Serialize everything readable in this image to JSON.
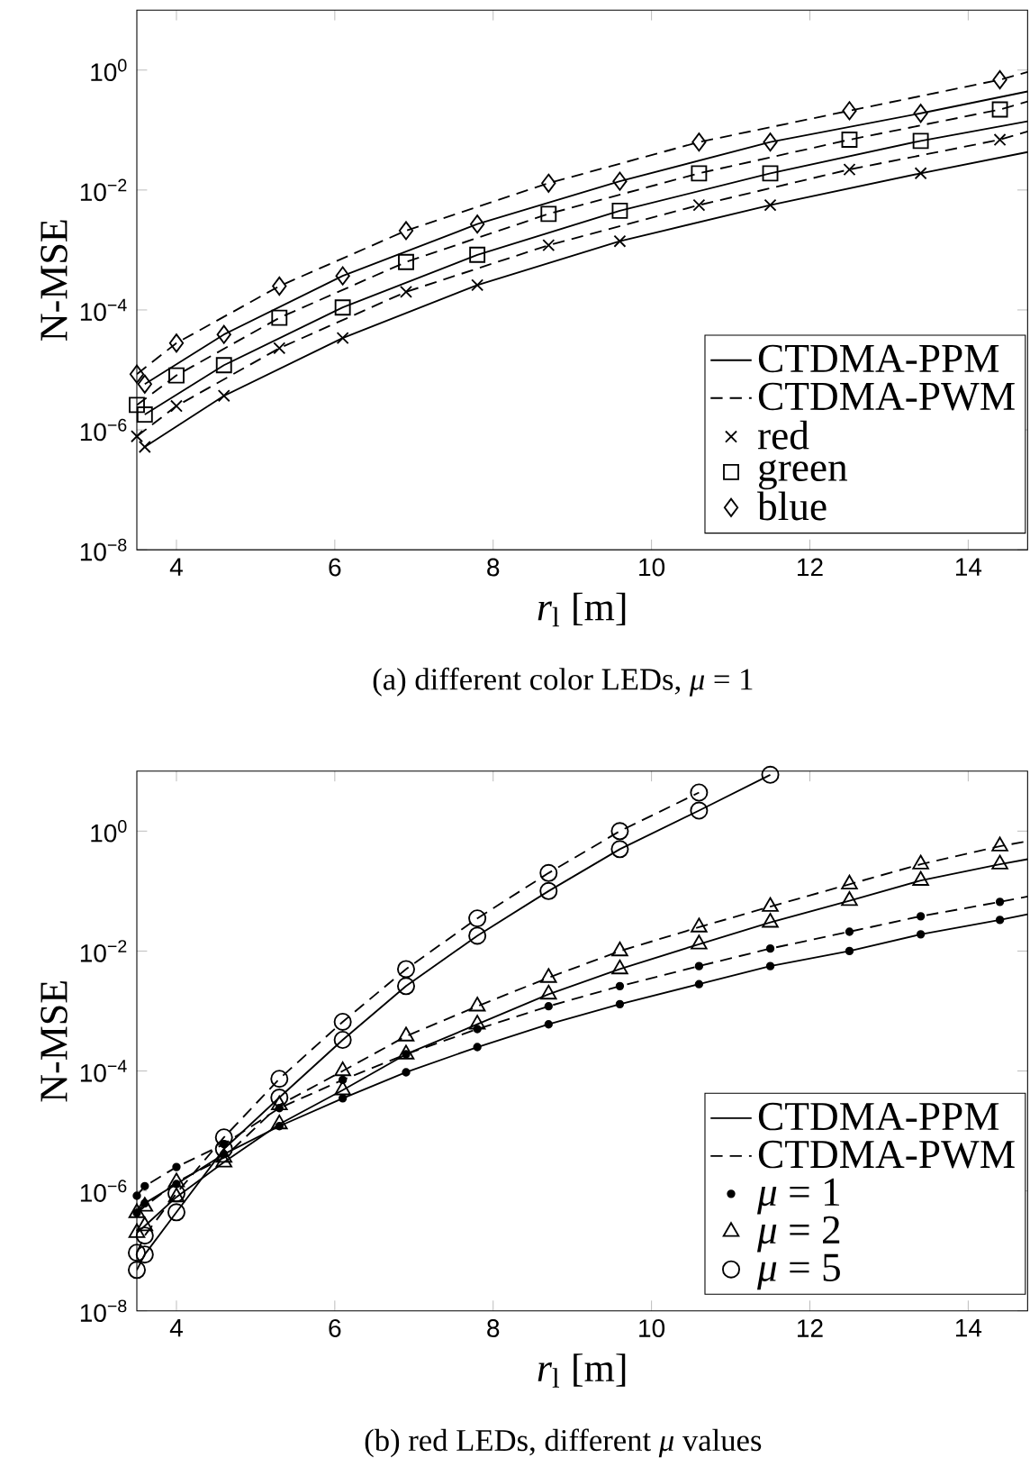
{
  "chart_data": [
    {
      "type": "line",
      "xlabel": "*r*$_{l}$ [m]",
      "ylabel": "N-MSE",
      "log": "y",
      "legend": "bottom right",
      "xlim": [
        3.5,
        14.75
      ],
      "ylim": [
        1e-08,
        10
      ],
      "xticks": [
        4,
        6,
        8,
        10,
        12,
        14
      ],
      "yticks": [
        {
          "value": 1e-08,
          "label": "10$^{−8}$"
        },
        {
          "value": 1e-06,
          "label": "10$^{−6}$"
        },
        {
          "value": 0.0001,
          "label": "10$^{−4}$"
        },
        {
          "value": 0.01,
          "label": "10$^{−2}$"
        },
        {
          "value": 1,
          "label": "10$^{0}$"
        }
      ],
      "annotations": [
        "(a) different color LEDs, *μ* = 1"
      ],
      "series": [
        {
          "name": "CTDMA-PPM",
          "color": "#000000",
          "line_style": "solid",
          "marker": "none",
          "x": [
            3.6,
            4.6,
            6.1,
            7.8,
            9.6,
            11.5,
            13.4,
            14.75
          ],
          "values": [
            5.2e-07,
            3.7e-06,
            3.4e-05,
            0.00026,
            0.0014,
            0.0056,
            0.019,
            0.043
          ]
        },
        {
          "name": "CTDMA-PWM",
          "color": "#000000",
          "line_style": "dashed",
          "marker": "none",
          "x": [
            3.5,
            4.0,
            5.3,
            6.9,
            8.7,
            10.6,
            12.5,
            14.4,
            14.75
          ],
          "values": [
            7.8e-07,
            2.5e-06,
            2.3e-05,
            0.0002,
            0.0012,
            0.0056,
            0.022,
            0.069,
            0.095
          ]
        },
        {
          "color": "#000000",
          "line_style": "solid",
          "marker": "none",
          "x": [
            3.6,
            4.6,
            6.1,
            7.8,
            9.6,
            11.5,
            13.4,
            14.75
          ],
          "values": [
            1.8e-06,
            1.2e-05,
            0.00011,
            0.00083,
            0.0045,
            0.019,
            0.066,
            0.14
          ]
        },
        {
          "color": "#000000",
          "line_style": "dashed",
          "marker": "none",
          "x": [
            3.5,
            4.0,
            5.3,
            6.9,
            8.7,
            10.6,
            12.5,
            14.4,
            14.75
          ],
          "values": [
            2.6e-06,
            8.1e-06,
            7.4e-05,
            0.00063,
            0.004,
            0.019,
            0.069,
            0.22,
            0.3
          ]
        },
        {
          "color": "#000000",
          "line_style": "solid",
          "marker": "none",
          "x": [
            3.6,
            4.6,
            6.1,
            7.8,
            9.6,
            11.5,
            13.4,
            14.75
          ],
          "values": [
            5.8e-06,
            3.9e-05,
            0.00037,
            0.0027,
            0.014,
            0.063,
            0.19,
            0.44
          ]
        },
        {
          "color": "#000000",
          "line_style": "dashed",
          "marker": "none",
          "x": [
            3.5,
            4.0,
            5.3,
            6.9,
            8.7,
            10.6,
            12.5,
            14.4,
            14.75
          ],
          "values": [
            8.5e-06,
            2.8e-05,
            0.00025,
            0.0021,
            0.013,
            0.063,
            0.21,
            0.69,
            0.93
          ]
        },
        {
          "type": "scatter",
          "name": "red",
          "color": "#000000",
          "marker": "cross",
          "x": [
            3.5,
            3.6,
            4.0,
            4.6,
            5.3,
            6.1,
            6.9,
            7.8,
            8.7,
            9.6,
            10.6,
            11.5,
            12.5,
            13.4,
            14.4
          ],
          "values": [
            7.8e-07,
            5.2e-07,
            2.5e-06,
            3.7e-06,
            2.3e-05,
            3.4e-05,
            0.0002,
            0.00026,
            0.0012,
            0.0014,
            0.0056,
            0.0056,
            0.022,
            0.019,
            0.069
          ]
        },
        {
          "type": "scatter",
          "name": "green",
          "color": "#000000",
          "marker": "square",
          "x": [
            3.5,
            3.6,
            4.0,
            4.6,
            5.3,
            6.1,
            6.9,
            7.8,
            8.7,
            9.6,
            10.6,
            11.5,
            12.5,
            13.4,
            14.4
          ],
          "values": [
            2.6e-06,
            1.8e-06,
            8.1e-06,
            1.2e-05,
            7.4e-05,
            0.00011,
            0.00063,
            0.00083,
            0.004,
            0.0045,
            0.019,
            0.019,
            0.069,
            0.066,
            0.22
          ]
        },
        {
          "type": "scatter",
          "name": "blue",
          "color": "#000000",
          "marker": "diamond",
          "x": [
            3.5,
            3.6,
            4.0,
            4.6,
            5.3,
            6.1,
            6.9,
            7.8,
            8.7,
            9.6,
            10.6,
            11.5,
            12.5,
            13.4,
            14.4
          ],
          "values": [
            8.5e-06,
            5.8e-06,
            2.8e-05,
            3.9e-05,
            0.00025,
            0.00037,
            0.0021,
            0.0027,
            0.013,
            0.014,
            0.063,
            0.063,
            0.21,
            0.19,
            0.69
          ]
        }
      ]
    },
    {
      "type": "line",
      "xlabel": "*r*$_{l}$ [m]",
      "ylabel": "N-MSE",
      "log": "y",
      "legend": "bottom right",
      "xlim": [
        3.5,
        14.75
      ],
      "ylim": [
        1e-08,
        10
      ],
      "xticks": [
        4,
        6,
        8,
        10,
        12,
        14
      ],
      "yticks": [
        {
          "value": 1e-08,
          "label": "10$^{−8}$"
        },
        {
          "value": 1e-06,
          "label": "10$^{−6}$"
        },
        {
          "value": 0.0001,
          "label": "10$^{−4}$"
        },
        {
          "value": 0.01,
          "label": "10$^{−2}$"
        },
        {
          "value": 1,
          "label": "10$^{0}$"
        }
      ],
      "annotations": [
        "(b) red LEDs, different *μ* values"
      ],
      "series": [
        {
          "name": "CTDMA-PPM",
          "color": "#000000",
          "line_style": "solid",
          "marker": "none",
          "x": [
            3.5,
            3.6,
            4.0,
            4.6,
            5.3,
            6.1,
            6.9,
            7.8,
            8.7,
            9.6,
            10.6,
            11.5,
            12.5,
            13.4,
            14.4,
            14.75
          ],
          "values": [
            4.3e-07,
            6.2e-07,
            1.3e-06,
            4.1e-06,
            1.2e-05,
            3.5e-05,
            9.5e-05,
            0.00025,
            0.0006,
            0.0013,
            0.0028,
            0.0056,
            0.01,
            0.019,
            0.033,
            0.041
          ]
        },
        {
          "name": "CTDMA-PWM",
          "color": "#000000",
          "line_style": "dashed",
          "marker": "none",
          "x": [
            3.5,
            3.6,
            4.0,
            4.6,
            5.3,
            6.1,
            6.9,
            7.8,
            8.7,
            9.6,
            10.6,
            11.5,
            12.5,
            13.4,
            14.4,
            14.75
          ],
          "values": [
            8.3e-07,
            1.2e-06,
            2.5e-06,
            6e-06,
            2.4e-05,
            7.1e-05,
            0.00019,
            0.0005,
            0.0012,
            0.0026,
            0.0056,
            0.011,
            0.021,
            0.038,
            0.066,
            0.081
          ]
        },
        {
          "color": "#000000",
          "line_style": "solid",
          "marker": "none",
          "x": [
            3.5,
            3.6,
            4.0,
            4.6,
            5.3,
            6.1,
            6.9,
            7.8,
            8.7,
            9.6,
            10.6,
            11.5,
            12.5,
            13.4,
            14.4,
            14.75
          ],
          "values": [
            2e-07,
            2.6e-07,
            7.9e-07,
            3e-06,
            1.3e-05,
            4.8e-05,
            0.00019,
            0.0006,
            0.0019,
            0.005,
            0.013,
            0.03,
            0.069,
            0.15,
            0.28,
            0.34
          ]
        },
        {
          "color": "#000000",
          "line_style": "dashed",
          "marker": "none",
          "x": [
            3.5,
            3.6,
            4.0,
            4.6,
            5.3,
            6.1,
            6.9,
            7.8,
            8.7,
            9.6,
            10.6,
            11.5,
            12.5,
            13.4,
            14.4,
            14.75
          ],
          "values": [
            4.3e-07,
            5.5e-07,
            1.4e-06,
            3.6e-06,
            2.7e-05,
            0.0001,
            0.00038,
            0.0012,
            0.0036,
            0.01,
            0.025,
            0.055,
            0.13,
            0.28,
            0.56,
            0.68
          ]
        },
        {
          "color": "#000000",
          "line_style": "solid",
          "marker": "none",
          "x": [
            3.5,
            3.6,
            4.0,
            4.6,
            5.3,
            6.1,
            6.9,
            7.8,
            8.7,
            9.6,
            10.6,
            11.5
          ],
          "values": [
            4.8e-08,
            8.7e-08,
            4.4e-07,
            5e-06,
            3.6e-05,
            0.00033,
            0.0026,
            0.018,
            0.1,
            0.5,
            2.2,
            8.7
          ]
        },
        {
          "color": "#000000",
          "line_style": "dashed",
          "marker": "none",
          "x": [
            3.5,
            3.6,
            4.0,
            4.6,
            5.3,
            6.1,
            6.9,
            7.8,
            8.7,
            9.6,
            10.6
          ],
          "values": [
            9.3e-08,
            1.8e-07,
            9.1e-07,
            7.8e-06,
            7.4e-05,
            0.00066,
            0.005,
            0.035,
            0.2,
            1.0,
            4.4
          ]
        },
        {
          "type": "scatter",
          "name": "*μ* = 1",
          "color": "#000000",
          "marker": "dot",
          "x": [
            3.5,
            3.6,
            4.0,
            4.6,
            5.3,
            6.1,
            6.9,
            7.8,
            8.7,
            9.6,
            10.6,
            11.5,
            12.5,
            13.4,
            14.4,
            3.5,
            3.6,
            4.0,
            4.6,
            5.3,
            6.1,
            6.9,
            7.8,
            8.7,
            9.6,
            10.6,
            11.5,
            12.5,
            13.4,
            14.4
          ],
          "values": [
            4.3e-07,
            6.2e-07,
            1.3e-06,
            4.1e-06,
            1.2e-05,
            3.5e-05,
            9.5e-05,
            0.00025,
            0.0006,
            0.0013,
            0.0028,
            0.0056,
            0.01,
            0.019,
            0.033,
            8.3e-07,
            1.2e-06,
            2.5e-06,
            6e-06,
            2.4e-05,
            7.1e-05,
            0.00019,
            0.0005,
            0.0012,
            0.0026,
            0.0056,
            0.011,
            0.021,
            0.038,
            0.066
          ]
        },
        {
          "type": "scatter",
          "name": "*μ* = 2",
          "color": "#000000",
          "marker": "triangle",
          "x": [
            3.5,
            3.6,
            4.0,
            4.6,
            5.3,
            6.1,
            6.9,
            7.8,
            8.7,
            9.6,
            10.6,
            11.5,
            12.5,
            13.4,
            14.4,
            3.5,
            3.6,
            4.0,
            4.6,
            5.3,
            6.1,
            6.9,
            7.8,
            8.7,
            9.6,
            10.6,
            11.5,
            12.5,
            13.4,
            14.4
          ],
          "values": [
            2e-07,
            2.6e-07,
            7.9e-07,
            3e-06,
            1.3e-05,
            4.8e-05,
            0.00019,
            0.0006,
            0.0019,
            0.005,
            0.013,
            0.03,
            0.069,
            0.15,
            0.28,
            4.3e-07,
            5.5e-07,
            1.4e-06,
            3.6e-06,
            2.7e-05,
            0.0001,
            0.00038,
            0.0012,
            0.0036,
            0.01,
            0.025,
            0.055,
            0.13,
            0.28,
            0.56
          ]
        },
        {
          "type": "scatter",
          "name": "*μ* = 5",
          "color": "#000000",
          "marker": "circle",
          "x": [
            3.5,
            3.6,
            4.0,
            4.6,
            5.3,
            6.1,
            6.9,
            7.8,
            8.7,
            9.6,
            10.6,
            11.5,
            3.5,
            3.6,
            4.0,
            4.6,
            5.3,
            6.1,
            6.9,
            7.8,
            8.7,
            9.6,
            10.6
          ],
          "values": [
            4.8e-08,
            8.7e-08,
            4.4e-07,
            5e-06,
            3.6e-05,
            0.00033,
            0.0026,
            0.018,
            0.1,
            0.5,
            2.2,
            8.7,
            9.3e-08,
            1.8e-07,
            9.1e-07,
            7.8e-06,
            7.4e-05,
            0.00066,
            0.005,
            0.035,
            0.2,
            1.0,
            4.4
          ]
        }
      ]
    }
  ]
}
